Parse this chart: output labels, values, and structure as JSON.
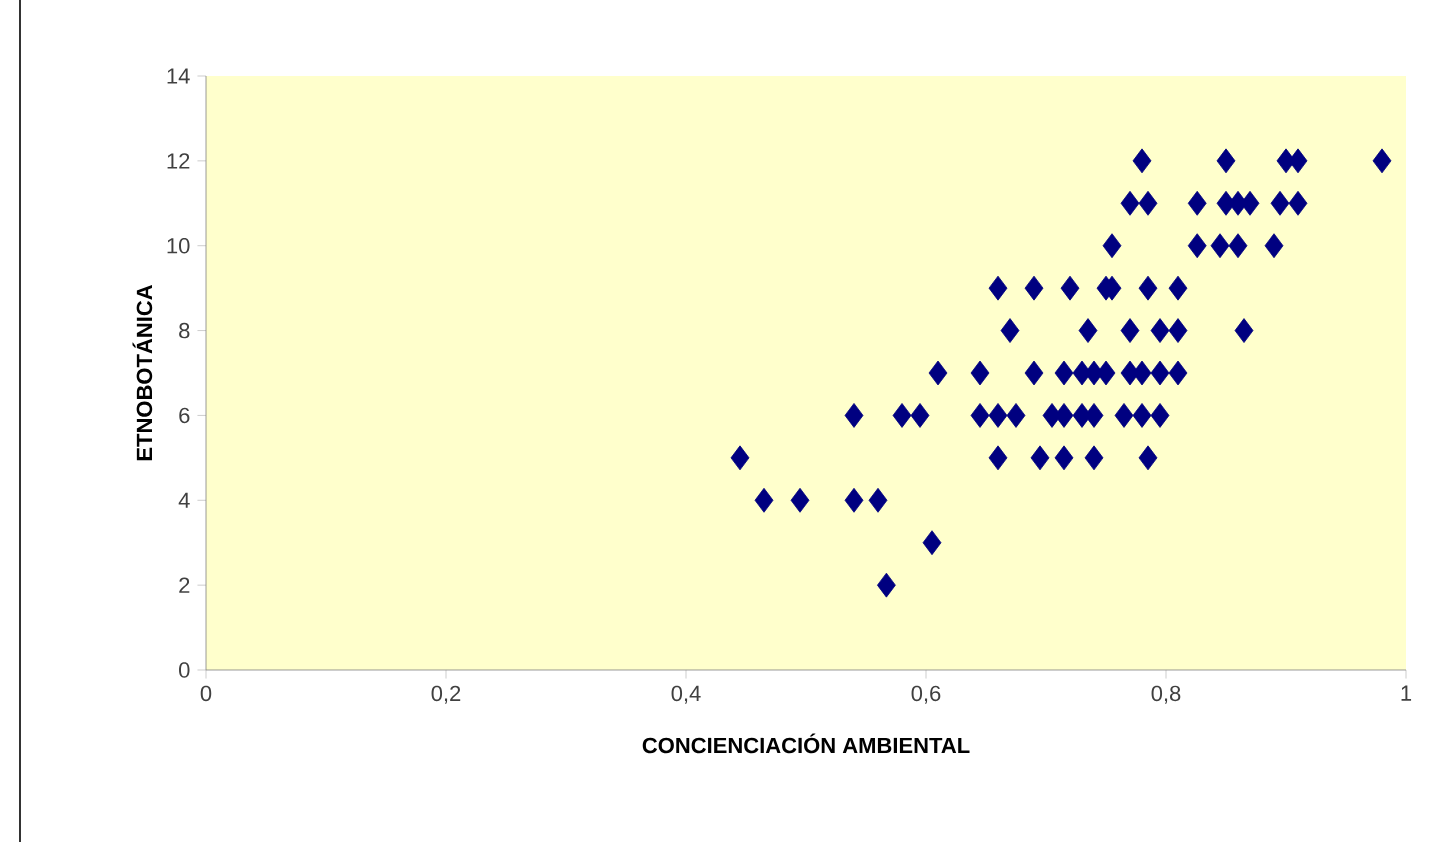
{
  "chart_data": {
    "type": "scatter",
    "xlabel": "CONCIENCIACIÓN AMBIENTAL",
    "ylabel": "ETNOBOTÁNICA",
    "marker": "diamond",
    "color": "#000080",
    "x": [
      0.78,
      0.85,
      0.9,
      0.91,
      0.98,
      0.77,
      0.785,
      0.826,
      0.85,
      0.86,
      0.87,
      0.895,
      0.91,
      0.755,
      0.826,
      0.845,
      0.86,
      0.89,
      0.66,
      0.69,
      0.72,
      0.75,
      0.755,
      0.785,
      0.81,
      0.67,
      0.735,
      0.77,
      0.795,
      0.81,
      0.865,
      0.61,
      0.645,
      0.69,
      0.715,
      0.73,
      0.74,
      0.75,
      0.77,
      0.78,
      0.795,
      0.81,
      0.54,
      0.58,
      0.595,
      0.645,
      0.66,
      0.675,
      0.705,
      0.715,
      0.73,
      0.74,
      0.765,
      0.78,
      0.795,
      0.445,
      0.66,
      0.695,
      0.715,
      0.74,
      0.785,
      0.465,
      0.495,
      0.54,
      0.56,
      0.605,
      0.567
    ],
    "values": [
      12,
      12,
      12,
      12,
      12,
      11,
      11,
      11,
      11,
      11,
      11,
      11,
      11,
      10,
      10,
      10,
      10,
      10,
      9,
      9,
      9,
      9,
      9,
      9,
      9,
      8,
      8,
      8,
      8,
      8,
      8,
      7,
      7,
      7,
      7,
      7,
      7,
      7,
      7,
      7,
      7,
      7,
      6,
      6,
      6,
      6,
      6,
      6,
      6,
      6,
      6,
      6,
      6,
      6,
      6,
      5,
      5,
      5,
      5,
      5,
      5,
      4,
      4,
      4,
      4,
      3,
      2
    ],
    "xlim": [
      0,
      1
    ],
    "ylim": [
      0,
      14
    ],
    "xticks": [
      {
        "value": 0,
        "label": "0"
      },
      {
        "value": 0.2,
        "label": "0,2"
      },
      {
        "value": 0.4,
        "label": "0,4"
      },
      {
        "value": 0.6,
        "label": "0,6"
      },
      {
        "value": 0.8,
        "label": "0,8"
      },
      {
        "value": 1,
        "label": "1"
      }
    ],
    "yticks": [
      0,
      2,
      4,
      6,
      8,
      10,
      12,
      14
    ]
  }
}
